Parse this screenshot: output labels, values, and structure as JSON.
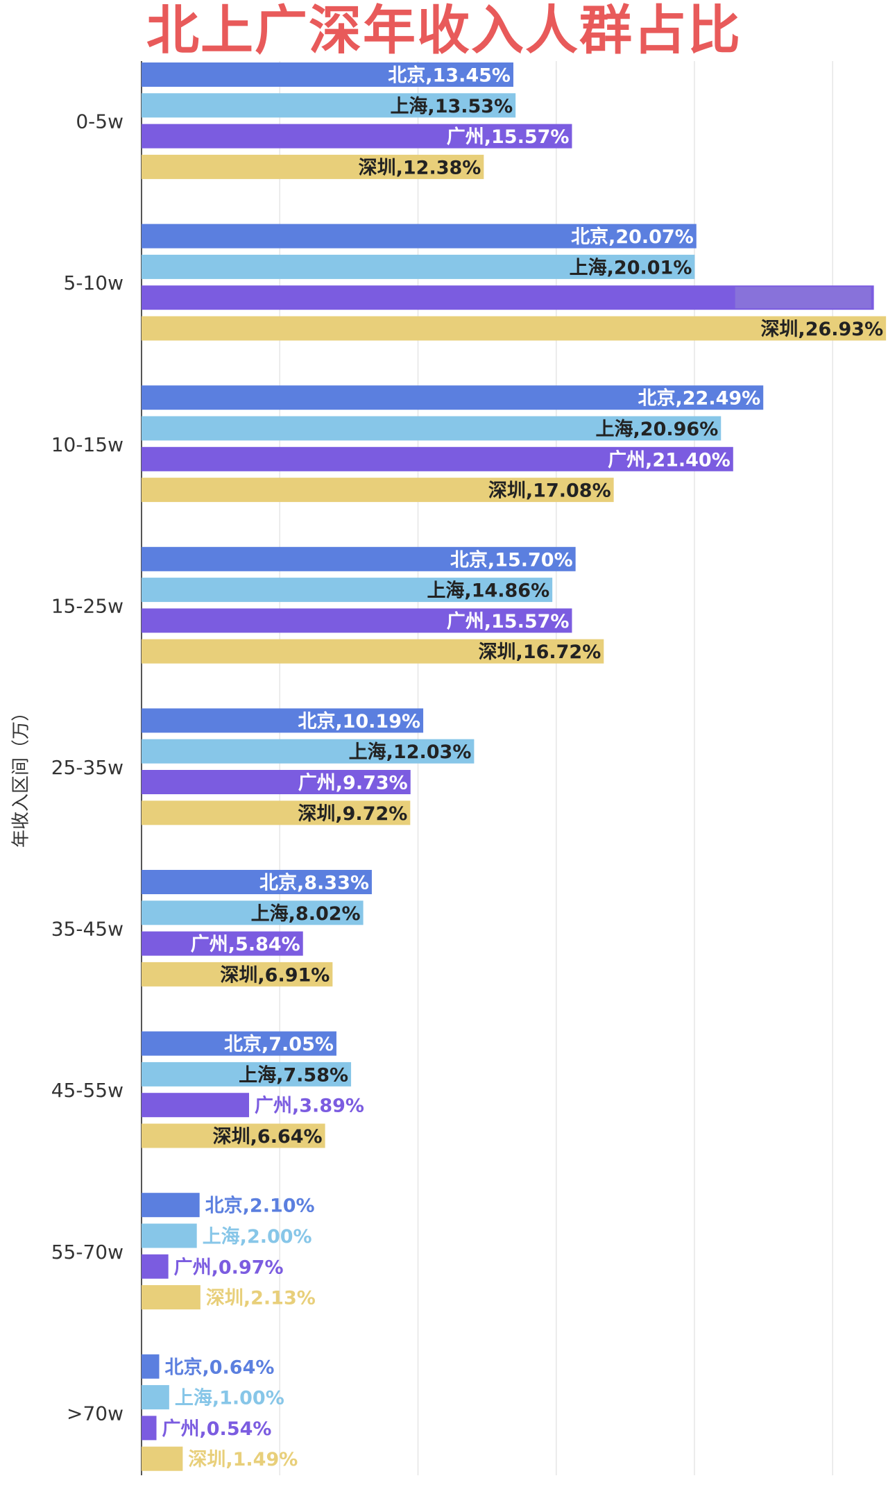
{
  "chart_data": {
    "type": "bar",
    "orientation": "horizontal",
    "title": "北上广深年收入人群占比",
    "ylabel": "年收入区间（万）",
    "xlabel": "",
    "categories": [
      "0-5w",
      "5-10w",
      "10-15w",
      "15-25w",
      "25-35w",
      "35-45w",
      "45-55w",
      "55-70w",
      ">70w"
    ],
    "series": [
      {
        "name": "北京",
        "color": "#5b7fdf",
        "label_color": "#ffffff",
        "values": [
          13.45,
          20.07,
          22.49,
          15.7,
          10.19,
          8.33,
          7.05,
          2.1,
          0.64
        ],
        "labels": [
          "北京,13.45%",
          "北京,20.07%",
          "北京,22.49%",
          "北京,15.70%",
          "北京,10.19%",
          "北京,8.33%",
          "北京,7.05%",
          "北京,2.10%",
          "北京,0.64%"
        ]
      },
      {
        "name": "上海",
        "color": "#87c6e8",
        "label_color": "#222222",
        "values": [
          13.53,
          20.01,
          20.96,
          14.86,
          12.03,
          8.02,
          7.58,
          2.0,
          1.0
        ],
        "labels": [
          "上海,13.53%",
          "上海,20.01%",
          "上海,20.96%",
          "上海,14.86%",
          "上海,12.03%",
          "上海,8.02%",
          "上海,7.58%",
          "上海,2.00%",
          "上海,1.00%"
        ]
      },
      {
        "name": "广州",
        "color": "#7b5ce0",
        "label_color": "#ffffff",
        "values": [
          15.57,
          26.49,
          21.4,
          15.57,
          9.73,
          5.84,
          3.89,
          0.97,
          0.54
        ],
        "labels": [
          "广州,15.57%",
          "",
          "广州,21.40%",
          "广州,15.57%",
          "广州,9.73%",
          "广州,5.84%",
          "广州,3.89%",
          "广州,0.97%",
          "广州,0.54%"
        ]
      },
      {
        "name": "深圳",
        "color": "#e8cf7a",
        "label_color": "#222222",
        "values": [
          12.38,
          26.93,
          17.08,
          16.72,
          9.72,
          6.91,
          6.64,
          2.13,
          1.49
        ],
        "labels": [
          "深圳,12.38%",
          "深圳,26.93%",
          "深圳,17.08%",
          "深圳,16.72%",
          "深圳,9.72%",
          "深圳,6.91%",
          "深圳,6.64%",
          "深圳,2.13%",
          "深圳,1.49%"
        ]
      }
    ],
    "xlim": [
      0,
      27
    ],
    "x_gridlines": [
      5,
      10,
      15,
      20,
      25
    ],
    "grid": true,
    "legend": "none",
    "title_color": "#e85a5a"
  }
}
